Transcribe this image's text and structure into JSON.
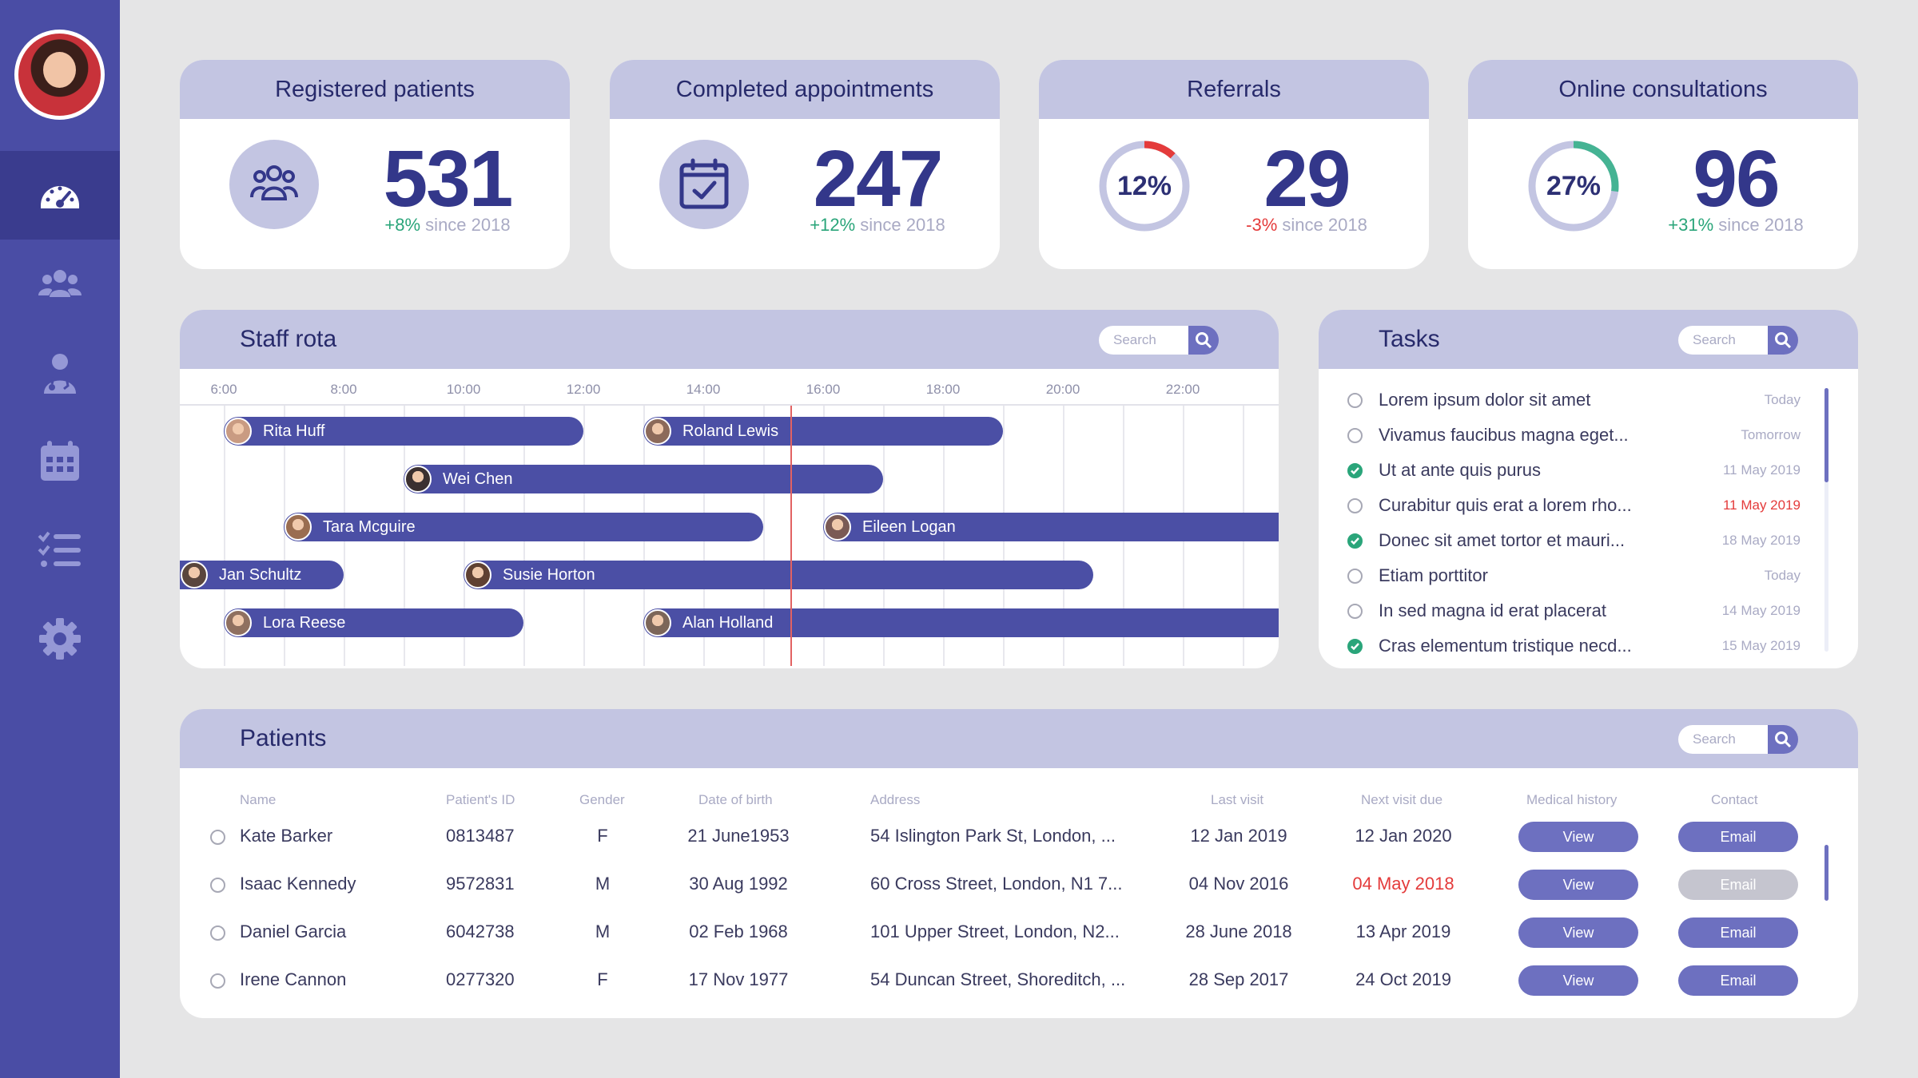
{
  "sidebar": {
    "nav": [
      {
        "icon": "dashboard-gauge-icon",
        "active": true
      },
      {
        "icon": "users-group-icon",
        "active": false
      },
      {
        "icon": "doctor-stethoscope-icon",
        "active": false
      },
      {
        "icon": "calendar-icon",
        "active": false
      },
      {
        "icon": "checklist-icon",
        "active": false
      },
      {
        "icon": "settings-gear-icon",
        "active": false
      }
    ]
  },
  "stats": [
    {
      "title": "Registered patients",
      "value": "531",
      "change": "+8%",
      "since": " since 2018",
      "icon": "patients-group-icon",
      "direction": "up"
    },
    {
      "title": "Completed appointments",
      "value": "247",
      "change": "+12%",
      "since": " since 2018",
      "icon": "calendar-check-icon",
      "direction": "up"
    },
    {
      "title": "Referrals",
      "value": "29",
      "change": "-3%",
      "since": " since 2018",
      "ring_label": "12%",
      "ring_fraction": 0.12,
      "ring_color": "#e43b3b",
      "direction": "down"
    },
    {
      "title": "Online consultations",
      "value": "96",
      "change": "+31%",
      "since": " since 2018",
      "ring_label": "27%",
      "ring_fraction": 0.27,
      "ring_color": "#45b393",
      "direction": "up"
    }
  ],
  "rota": {
    "title": "Staff rota",
    "search_placeholder": "Search",
    "times": [
      "6:00",
      "8:00",
      "10:00",
      "12:00",
      "14:00",
      "16:00",
      "18:00",
      "20:00",
      "22:00"
    ],
    "shifts": [
      {
        "name": "Rita Huff",
        "start": 6.0,
        "end": 12.0
      },
      {
        "name": "Roland Lewis",
        "start": 13.0,
        "end": 19.0
      },
      {
        "name": "Wei Chen",
        "start": 9.0,
        "end": 17.0
      },
      {
        "name": "Tara Mcguire",
        "start": 7.0,
        "end": 15.0
      },
      {
        "name": "Eileen Logan",
        "start": 16.0,
        "end": 24.0
      },
      {
        "name": "Jan Schultz",
        "start": 5.25,
        "end": 8.0
      },
      {
        "name": "Susie Horton",
        "start": 10.0,
        "end": 20.5
      },
      {
        "name": "Lora Reese",
        "start": 6.0,
        "end": 11.0
      },
      {
        "name": "Alan Holland",
        "start": 13.0,
        "end": 24.0
      }
    ],
    "now": 15.45
  },
  "tasks": {
    "title": "Tasks",
    "search_placeholder": "Search",
    "items": [
      {
        "text": "Lorem ipsum dolor sit amet",
        "date": "Today",
        "done": false,
        "overdue": false
      },
      {
        "text": "Vivamus faucibus magna eget...",
        "date": "Tomorrow",
        "done": false,
        "overdue": false
      },
      {
        "text": "Ut at ante quis purus",
        "date": "11 May 2019",
        "done": true,
        "overdue": false
      },
      {
        "text": "Curabitur quis erat a lorem rho...",
        "date": "11 May 2019",
        "done": false,
        "overdue": true
      },
      {
        "text": "Donec sit amet tortor et mauri...",
        "date": "18 May 2019",
        "done": true,
        "overdue": false
      },
      {
        "text": "Etiam porttitor",
        "date": "Today",
        "done": false,
        "overdue": false
      },
      {
        "text": "In sed magna id erat placerat",
        "date": "14 May 2019",
        "done": false,
        "overdue": false
      },
      {
        "text": "Cras elementum tristique necd...",
        "date": "15 May 2019",
        "done": true,
        "overdue": false
      }
    ]
  },
  "patients": {
    "title": "Patients",
    "search_placeholder": "Search",
    "columns": [
      "Name",
      "Patient's ID",
      "Gender",
      "Date of birth",
      "Address",
      "Last visit",
      "Next visit due",
      "Medical history",
      "Contact"
    ],
    "rows": [
      {
        "name": "Kate Barker",
        "id": "0813487",
        "gender": "F",
        "dob": "21 June1953",
        "address": "54 Islington Park St, London, ...",
        "last": "12 Jan 2019",
        "next": "12 Jan 2020",
        "next_overdue": false,
        "history": "View",
        "contact": "Email",
        "contact_enabled": true
      },
      {
        "name": "Isaac Kennedy",
        "id": "9572831",
        "gender": "M",
        "dob": "30 Aug 1992",
        "address": "60 Cross Street, London, N1 7...",
        "last": "04 Nov 2016",
        "next": "04 May 2018",
        "next_overdue": true,
        "history": "View",
        "contact": "Email",
        "contact_enabled": false
      },
      {
        "name": "Daniel Garcia",
        "id": "6042738",
        "gender": "M",
        "dob": "02 Feb 1968",
        "address": "101 Upper Street, London, N2...",
        "last": "28 June 2018",
        "next": "13 Apr 2019",
        "next_overdue": false,
        "history": "View",
        "contact": "Email",
        "contact_enabled": true
      },
      {
        "name": "Irene Cannon",
        "id": "0277320",
        "gender": "F",
        "dob": "17 Nov 1977",
        "address": "54 Duncan Street, Shoreditch, ...",
        "last": "28 Sep 2017",
        "next": "24 Oct 2019",
        "next_overdue": false,
        "history": "View",
        "contact": "Email",
        "contact_enabled": true
      }
    ]
  },
  "colors": {
    "sidebar": "#4a4da5",
    "accent": "#6d70c0",
    "header": "#c3c5e2",
    "positive": "#2aa57a",
    "negative": "#e43b3b"
  }
}
